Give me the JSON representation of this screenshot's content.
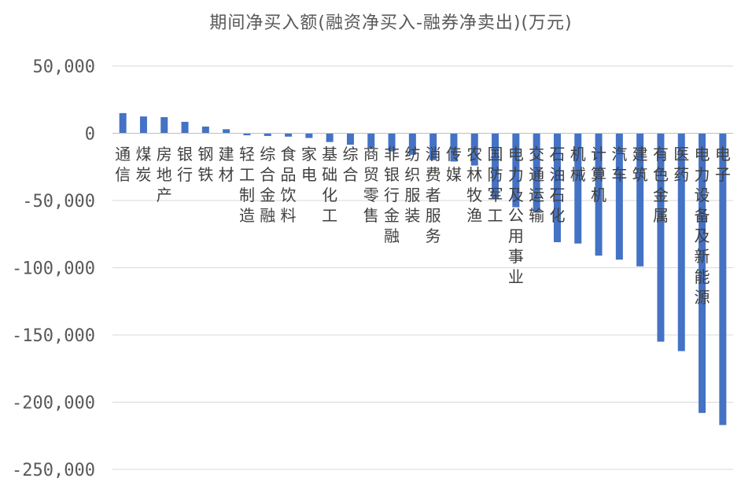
{
  "chart_data": {
    "type": "bar",
    "title": "期间净买入额(融资净买入-融券净卖出)(万元)",
    "xlabel": "",
    "ylabel": "",
    "ylim": [
      -250000,
      50000
    ],
    "y_ticks": [
      50000,
      0,
      -50000,
      -100000,
      -150000,
      -200000,
      -250000
    ],
    "y_tick_labels": [
      "50,000",
      "0",
      "-50,000",
      "-100,000",
      "-150,000",
      "-200,000",
      "-250,000"
    ],
    "grid": true,
    "legend": "none",
    "bar_color": "#4472c4",
    "categories": [
      "通信",
      "煤炭",
      "房地产",
      "银行",
      "钢铁",
      "建材",
      "轻工制造",
      "综合金融",
      "食品饮料",
      "家电",
      "基础化工",
      "综合",
      "商贸零售",
      "非银行金融",
      "纺织服装",
      "消费者服务",
      "传媒",
      "农林牧渔",
      "国防军工",
      "电力及公用事业",
      "交通运输",
      "石油石化",
      "机械",
      "计算机",
      "汽车",
      "建筑",
      "有色金属",
      "医药",
      "电力设备及新能源",
      "电子"
    ],
    "values": [
      15000,
      12500,
      12000,
      8500,
      5000,
      3000,
      -1500,
      -2000,
      -2500,
      -3500,
      -6500,
      -8500,
      -11000,
      -13500,
      -16000,
      -20000,
      -21000,
      -24000,
      -49000,
      -55000,
      -59000,
      -81000,
      -82000,
      -91000,
      -94000,
      -99000,
      -155000,
      -162000,
      -208000,
      -217000
    ]
  }
}
